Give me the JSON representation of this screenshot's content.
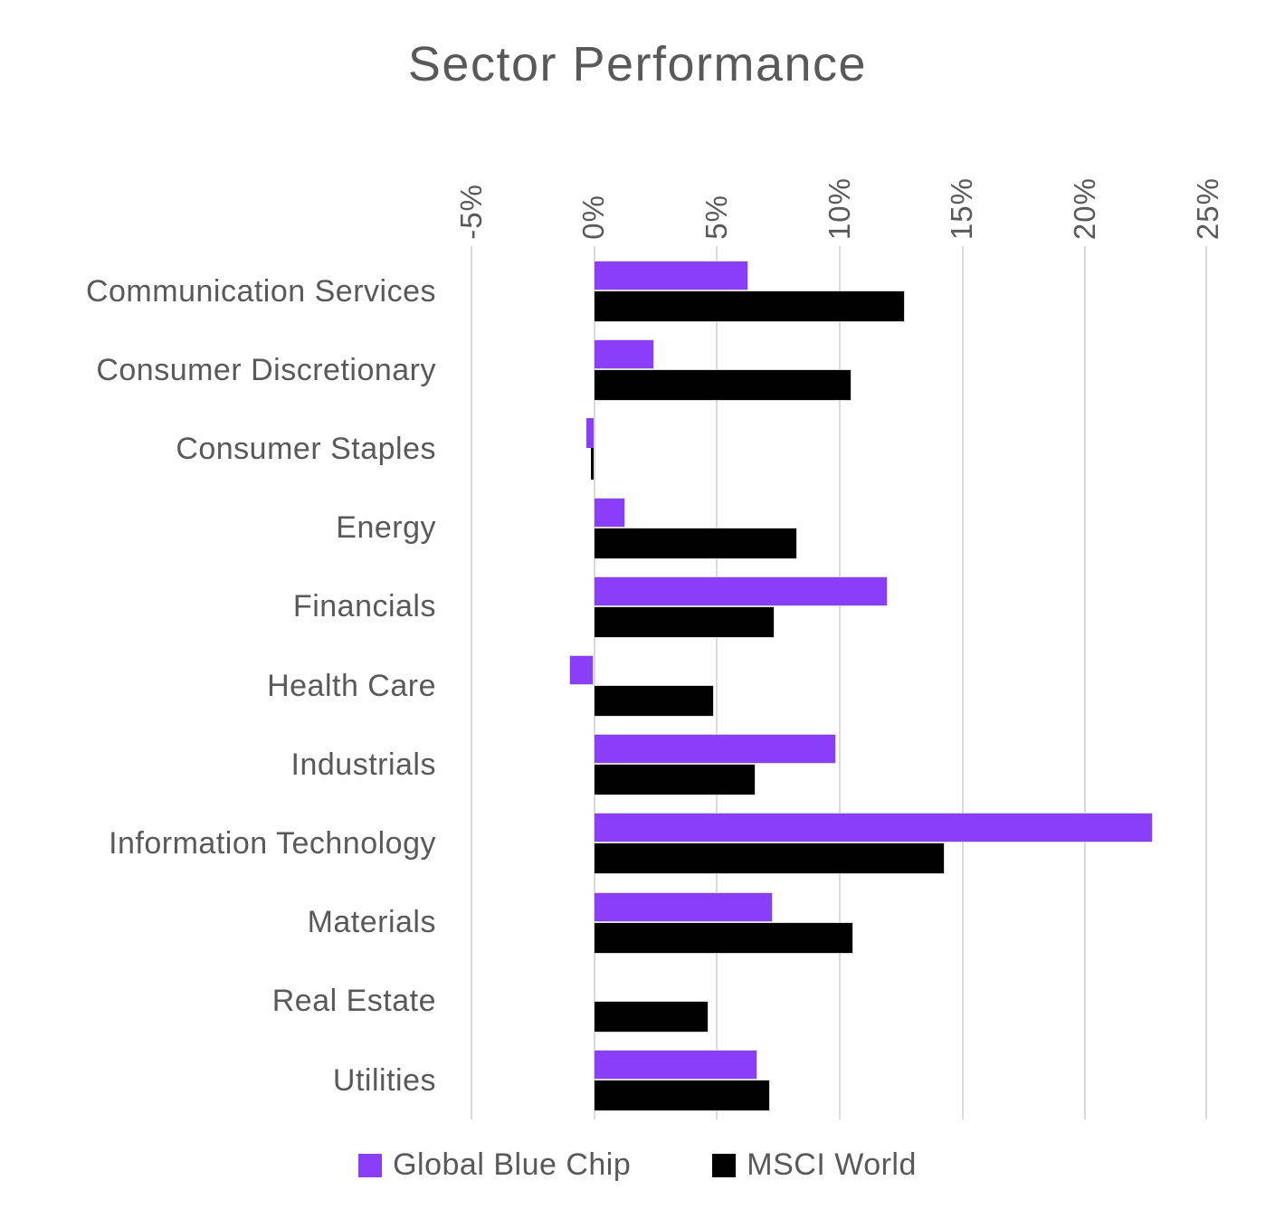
{
  "chart_data": {
    "type": "bar",
    "orientation": "horizontal",
    "title": "Sector Performance",
    "categories": [
      "Communication Services",
      "Consumer Discretionary",
      "Consumer Staples",
      "Energy",
      "Financials",
      "Health Care",
      "Industrials",
      "Information Technology",
      "Materials",
      "Real Estate",
      "Utilities"
    ],
    "series": [
      {
        "name": "Global Blue Chip",
        "color": "#8B3EFA",
        "values": [
          6.3,
          2.5,
          -0.3,
          1.3,
          12.0,
          -1.0,
          9.9,
          22.8,
          7.3,
          0,
          6.7
        ]
      },
      {
        "name": "MSCI World",
        "color": "#000000",
        "values": [
          12.7,
          10.5,
          -0.1,
          8.3,
          7.4,
          4.9,
          6.6,
          14.3,
          10.6,
          4.7,
          7.2
        ]
      }
    ],
    "x_ticks": [
      -5,
      0,
      5,
      10,
      15,
      20,
      25
    ],
    "x_tick_labels": [
      "-5%",
      "0%",
      "5%",
      "10%",
      "15%",
      "20%",
      "25%"
    ],
    "xlim": [
      -5,
      25
    ],
    "grid": "vertical-only",
    "legend_position": "bottom",
    "value_unit": "%"
  },
  "colors": {
    "text_gray": "#595959",
    "gridline": "#d9d9d9",
    "bar_border": "#d9d9d9",
    "background": "#ffffff",
    "accent_purple": "#8B3EFA",
    "series_black": "#000000"
  }
}
